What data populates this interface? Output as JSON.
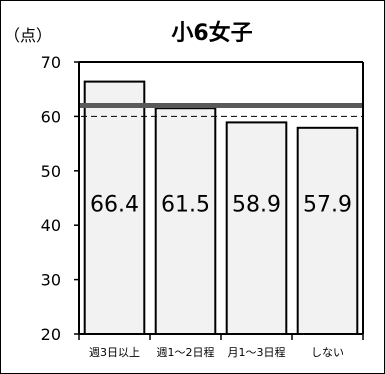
{
  "chart_data": {
    "type": "bar",
    "title": "小6女子",
    "ylabel": "（点）",
    "xlabel": "",
    "ylim": [
      20,
      70
    ],
    "yticks": [
      20,
      30,
      40,
      50,
      60,
      70
    ],
    "categories": [
      "週3日以上",
      "週1〜2日程",
      "月1〜3日程",
      "しない"
    ],
    "values": [
      66.4,
      61.5,
      58.9,
      57.9
    ],
    "data_labels": [
      "66.4",
      "61.5",
      "58.9",
      "57.9"
    ],
    "reference_lines": [
      {
        "value": 62,
        "style": "solid-thick",
        "color": "#595959"
      },
      {
        "value": 60,
        "style": "dashed",
        "color": "#000000"
      }
    ],
    "bar_color": "#f2f2f2",
    "grid": false
  }
}
